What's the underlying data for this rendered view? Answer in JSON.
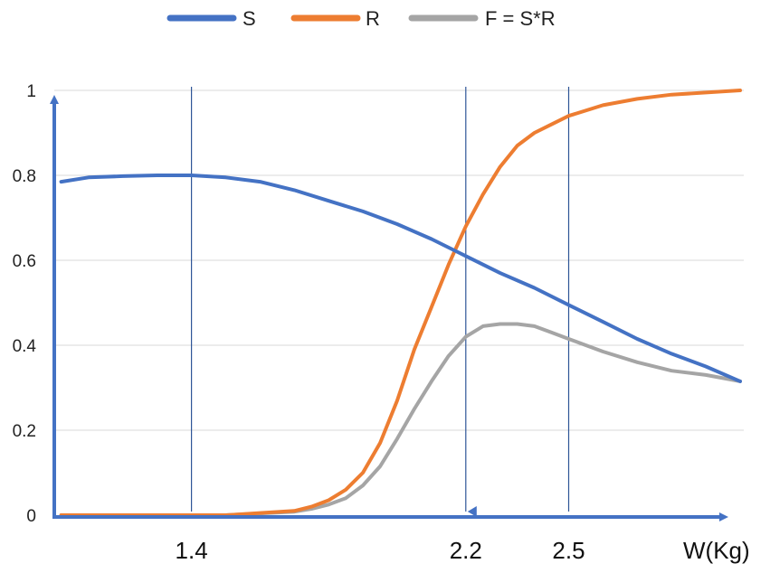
{
  "chart_data": {
    "type": "line",
    "title": "",
    "xlabel": "W(Kg)",
    "ylabel": "",
    "ylim": [
      0,
      1
    ],
    "xlim": [
      1.0,
      3.0
    ],
    "grid": true,
    "legend_position": "top-center",
    "y_ticks": [
      "0",
      "0.2",
      "0.4",
      "0.6",
      "0.8",
      "1"
    ],
    "x_ticks": [
      {
        "label": "1.4",
        "value": 1.4
      },
      {
        "label": "2.2",
        "value": 2.2
      },
      {
        "label": "2.5",
        "value": 2.5
      }
    ],
    "reference_lines_x": [
      1.4,
      2.2,
      2.5
    ],
    "series": [
      {
        "name": "S",
        "color": "#4472C4",
        "x": [
          1.02,
          1.1,
          1.2,
          1.3,
          1.4,
          1.5,
          1.6,
          1.7,
          1.8,
          1.9,
          2.0,
          2.1,
          2.2,
          2.3,
          2.4,
          2.5,
          2.6,
          2.7,
          2.8,
          2.9,
          3.0
        ],
        "y": [
          0.785,
          0.795,
          0.798,
          0.8,
          0.8,
          0.795,
          0.785,
          0.765,
          0.74,
          0.715,
          0.685,
          0.65,
          0.61,
          0.57,
          0.535,
          0.495,
          0.455,
          0.415,
          0.38,
          0.35,
          0.315
        ]
      },
      {
        "name": "R",
        "color": "#ED7D31",
        "x": [
          1.02,
          1.2,
          1.4,
          1.5,
          1.6,
          1.7,
          1.75,
          1.8,
          1.85,
          1.9,
          1.95,
          2.0,
          2.05,
          2.1,
          2.15,
          2.2,
          2.25,
          2.3,
          2.35,
          2.4,
          2.45,
          2.5,
          2.6,
          2.7,
          2.8,
          2.9,
          3.0
        ],
        "y": [
          0.0,
          0.0,
          0.0,
          0.0,
          0.005,
          0.01,
          0.02,
          0.035,
          0.06,
          0.1,
          0.17,
          0.27,
          0.39,
          0.49,
          0.59,
          0.68,
          0.755,
          0.82,
          0.87,
          0.9,
          0.92,
          0.94,
          0.965,
          0.98,
          0.99,
          0.995,
          1.0
        ]
      },
      {
        "name": "F = S*R",
        "color": "#A5A5A5",
        "x": [
          1.02,
          1.2,
          1.4,
          1.5,
          1.6,
          1.7,
          1.75,
          1.8,
          1.85,
          1.9,
          1.95,
          2.0,
          2.05,
          2.1,
          2.15,
          2.2,
          2.25,
          2.3,
          2.35,
          2.4,
          2.45,
          2.5,
          2.6,
          2.7,
          2.8,
          2.9,
          3.0
        ],
        "y": [
          0.0,
          0.0,
          0.0,
          0.0,
          0.004,
          0.008,
          0.015,
          0.025,
          0.04,
          0.07,
          0.115,
          0.18,
          0.25,
          0.315,
          0.375,
          0.42,
          0.445,
          0.45,
          0.45,
          0.445,
          0.43,
          0.415,
          0.385,
          0.36,
          0.34,
          0.33,
          0.315
        ]
      }
    ]
  }
}
